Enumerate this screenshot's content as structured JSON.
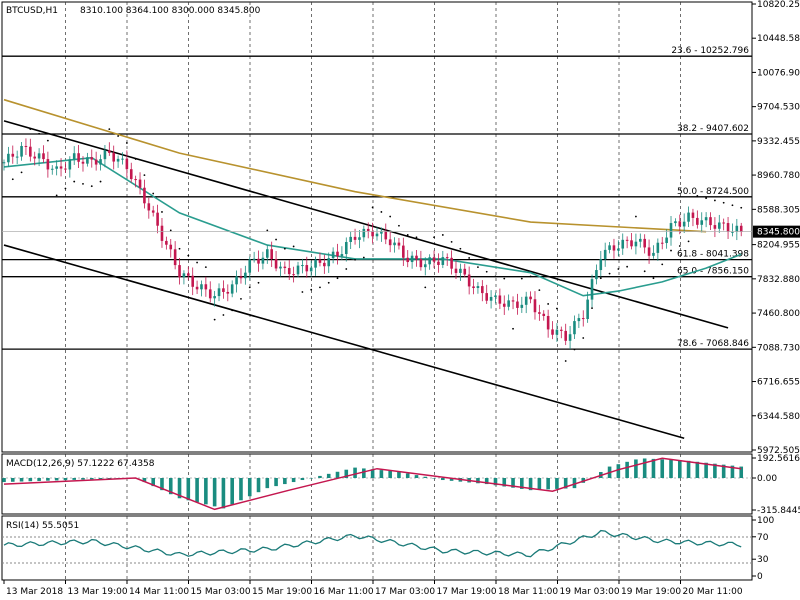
{
  "header": {
    "symbol": "BTCUSD,H1",
    "ohlc": "8310.100 8364.100 8300.000 8345.800"
  },
  "price_axis": {
    "ticks": [
      "10820.255",
      "10448.580",
      "10076.905",
      "9704.530",
      "9332.455",
      "8960.780",
      "8588.305",
      "8204.955",
      "7832.880",
      "7460.800",
      "7088.730",
      "6716.655",
      "6344.580",
      "5972.505"
    ],
    "current": "8345.800"
  },
  "fib_levels": [
    {
      "label": "23.6 - 10252.796",
      "value": 10252.796
    },
    {
      "label": "38.2 - 9407.602",
      "value": 9407.602
    },
    {
      "label": "50.0 - 8724.500",
      "value": 8724.5
    },
    {
      "label": "61.8 - 8041.398",
      "value": 8041.398
    },
    {
      "label": "65.0 - 7856.150",
      "value": 7856.15
    },
    {
      "label": "78.6 - 7068.846",
      "value": 7068.846
    }
  ],
  "time_axis": [
    "13 Mar 2018",
    "13 Mar 19:00",
    "14 Mar 11:00",
    "15 Mar 03:00",
    "15 Mar 19:00",
    "16 Mar 11:00",
    "17 Mar 03:00",
    "17 Mar 19:00",
    "18 Mar 11:00",
    "19 Mar 03:00",
    "19 Mar 19:00",
    "20 Mar 11:00"
  ],
  "macd": {
    "label": "MACD(12,26,9) 57.1222 67.4358",
    "ticks": [
      "192.5616",
      "0.00",
      "-315.8445"
    ]
  },
  "rsi": {
    "label": "RSI(14) 55.5051",
    "ticks": [
      "100",
      "70",
      "30",
      "0"
    ]
  },
  "colors": {
    "bull": "#1a8c80",
    "bear": "#c4174f",
    "ma_slow": "#b8922e",
    "ma_fast": "#2a9d8f",
    "macd_hist": "#1a8c80",
    "macd_signal": "#c4174f",
    "rsi": "#1a7a78"
  },
  "chart_data": {
    "type": "candlestick",
    "symbol": "BTCUSD",
    "timeframe": "H1",
    "ylim": [
      5972.505,
      10820.255
    ],
    "close_path": [
      [
        0,
        9100
      ],
      [
        4,
        9250
      ],
      [
        8,
        9150
      ],
      [
        12,
        9000
      ],
      [
        16,
        9150
      ],
      [
        20,
        9100
      ],
      [
        24,
        9200
      ],
      [
        28,
        9050
      ],
      [
        32,
        8700
      ],
      [
        36,
        8300
      ],
      [
        40,
        7900
      ],
      [
        44,
        7750
      ],
      [
        48,
        7650
      ],
      [
        52,
        7750
      ],
      [
        56,
        8000
      ],
      [
        60,
        8100
      ],
      [
        64,
        7900
      ],
      [
        68,
        7950
      ],
      [
        72,
        8000
      ],
      [
        76,
        8100
      ],
      [
        80,
        8300
      ],
      [
        84,
        8350
      ],
      [
        88,
        8250
      ],
      [
        92,
        8050
      ],
      [
        96,
        8000
      ],
      [
        100,
        8050
      ],
      [
        104,
        7900
      ],
      [
        108,
        7700
      ],
      [
        112,
        7600
      ],
      [
        116,
        7550
      ],
      [
        120,
        7600
      ],
      [
        124,
        7300
      ],
      [
        128,
        7200
      ],
      [
        132,
        7450
      ],
      [
        136,
        8100
      ],
      [
        140,
        8200
      ],
      [
        144,
        8250
      ],
      [
        148,
        8100
      ],
      [
        152,
        8400
      ],
      [
        156,
        8500
      ],
      [
        160,
        8450
      ],
      [
        164,
        8400
      ],
      [
        168,
        8345.8
      ]
    ],
    "ma_slow": [
      [
        0,
        9780
      ],
      [
        40,
        9200
      ],
      [
        80,
        8780
      ],
      [
        120,
        8450
      ],
      [
        160,
        8345
      ]
    ],
    "ma_fast": [
      [
        0,
        9050
      ],
      [
        20,
        9150
      ],
      [
        40,
        8550
      ],
      [
        60,
        8200
      ],
      [
        80,
        8050
      ],
      [
        100,
        8050
      ],
      [
        120,
        7900
      ],
      [
        132,
        7650
      ],
      [
        140,
        7700
      ],
      [
        150,
        7800
      ],
      [
        160,
        7950
      ],
      [
        168,
        8100
      ]
    ],
    "trend_upper": [
      [
        0,
        9550
      ],
      [
        165,
        7300
      ]
    ],
    "trend_lower": [
      [
        0,
        8200
      ],
      [
        155,
        6100
      ]
    ],
    "macd_hist": [
      [
        0,
        -40
      ],
      [
        15,
        -20
      ],
      [
        30,
        0
      ],
      [
        40,
        -200
      ],
      [
        50,
        -300
      ],
      [
        60,
        -100
      ],
      [
        80,
        100
      ],
      [
        90,
        60
      ],
      [
        100,
        -20
      ],
      [
        110,
        -60
      ],
      [
        120,
        -120
      ],
      [
        130,
        -100
      ],
      [
        138,
        110
      ],
      [
        145,
        190
      ],
      [
        155,
        170
      ],
      [
        168,
        110
      ]
    ],
    "macd_signal": [
      [
        0,
        -60
      ],
      [
        30,
        0
      ],
      [
        48,
        -310
      ],
      [
        65,
        -120
      ],
      [
        85,
        90
      ],
      [
        105,
        -20
      ],
      [
        125,
        -130
      ],
      [
        140,
        80
      ],
      [
        150,
        190
      ],
      [
        168,
        90
      ]
    ],
    "rsi": [
      [
        0,
        55
      ],
      [
        20,
        62
      ],
      [
        40,
        38
      ],
      [
        60,
        48
      ],
      [
        80,
        72
      ],
      [
        100,
        45
      ],
      [
        120,
        38
      ],
      [
        136,
        78
      ],
      [
        150,
        62
      ],
      [
        168,
        56
      ]
    ]
  }
}
